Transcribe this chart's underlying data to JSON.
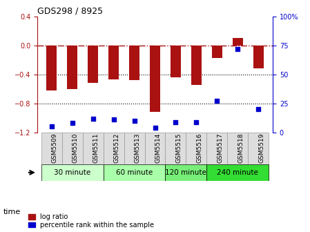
{
  "title": "GDS298 / 8925",
  "samples": [
    "GSM5509",
    "GSM5510",
    "GSM5511",
    "GSM5512",
    "GSM5513",
    "GSM5514",
    "GSM5515",
    "GSM5516",
    "GSM5517",
    "GSM5518",
    "GSM5519"
  ],
  "log_ratios": [
    -0.62,
    -0.6,
    -0.52,
    -0.47,
    -0.48,
    -0.92,
    -0.44,
    -0.55,
    -0.18,
    0.1,
    -0.32
  ],
  "percentile_ranks": [
    5,
    8,
    12,
    11,
    10,
    4,
    9,
    9,
    27,
    72,
    20
  ],
  "bar_color": "#aa1111",
  "dot_color": "#0000cc",
  "ylim_left": [
    -1.2,
    0.4
  ],
  "ylim_right": [
    0,
    100
  ],
  "yticks_left": [
    0.4,
    0.0,
    -0.4,
    -0.8,
    -1.2
  ],
  "yticks_right_vals": [
    100,
    75,
    50,
    25,
    0
  ],
  "yticks_right_labels": [
    "100%",
    "75",
    "50",
    "25",
    "0"
  ],
  "dotted_lines": [
    -0.4,
    -0.8
  ],
  "time_groups": [
    {
      "label": "30 minute",
      "start": 0,
      "end": 3,
      "color": "#ccffcc"
    },
    {
      "label": "60 minute",
      "start": 3,
      "end": 6,
      "color": "#aaffaa"
    },
    {
      "label": "120 minute",
      "start": 6,
      "end": 8,
      "color": "#77ee77"
    },
    {
      "label": "240 minute",
      "start": 8,
      "end": 11,
      "color": "#33dd33"
    }
  ],
  "legend_entries": [
    "log ratio",
    "percentile rank within the sample"
  ],
  "time_label": "time",
  "bar_width": 0.5
}
